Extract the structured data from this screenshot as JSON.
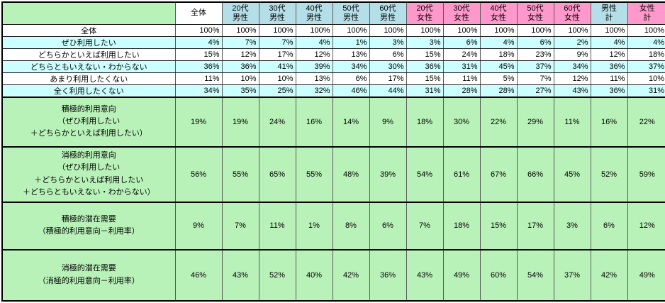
{
  "colors": {
    "section_green": "#B9F2B9",
    "stripe_cyan": "#CCFFFF",
    "male_header_blue": "#B5DFE8",
    "female_header_pink": "#FF99CC",
    "grid_border": "#000000"
  },
  "chart_data": {
    "type": "table",
    "unit": "%",
    "corner_label": "",
    "columns": [
      {
        "label": "全体",
        "group": "total"
      },
      {
        "label": "20代\n男性",
        "group": "male"
      },
      {
        "label": "30代\n男性",
        "group": "male"
      },
      {
        "label": "40代\n男性",
        "group": "male"
      },
      {
        "label": "50代\n男性",
        "group": "male"
      },
      {
        "label": "60代\n男性",
        "group": "male"
      },
      {
        "label": "20代\n女性",
        "group": "female"
      },
      {
        "label": "30代\n女性",
        "group": "female"
      },
      {
        "label": "40代\n女性",
        "group": "female"
      },
      {
        "label": "50代\n女性",
        "group": "female"
      },
      {
        "label": "60代\n女性",
        "group": "female"
      },
      {
        "label": "男性\n計",
        "group": "male"
      },
      {
        "label": "女性\n計",
        "group": "female"
      }
    ],
    "sections": [
      {
        "style": "striped",
        "rows": [
          {
            "label": "全体",
            "values": [
              100,
              100,
              100,
              100,
              100,
              100,
              100,
              100,
              100,
              100,
              100,
              100,
              100
            ]
          },
          {
            "label": "ぜひ利用したい",
            "values": [
              4,
              7,
              7,
              4,
              1,
              3,
              3,
              6,
              4,
              6,
              2,
              4,
              4
            ]
          },
          {
            "label": "どちらかといえば利用したい",
            "values": [
              15,
              12,
              17,
              12,
              13,
              6,
              15,
              24,
              18,
              23,
              9,
              12,
              18
            ]
          },
          {
            "label": "どちらともいえない・わからない",
            "values": [
              36,
              36,
              41,
              39,
              34,
              30,
              36,
              31,
              45,
              37,
              34,
              36,
              37
            ]
          },
          {
            "label": "あまり利用したくない",
            "values": [
              11,
              10,
              10,
              13,
              6,
              17,
              15,
              11,
              5,
              7,
              12,
              11,
              10
            ]
          },
          {
            "label": "全く利用したくない",
            "values": [
              34,
              35,
              25,
              32,
              46,
              44,
              31,
              28,
              28,
              27,
              43,
              36,
              31
            ]
          }
        ]
      },
      {
        "style": "green-blocks",
        "rows": [
          {
            "label": "積極的利用意向\n（ぜひ利用したい\n＋どちらかといえば利用したい）",
            "values": [
              19,
              19,
              24,
              16,
              14,
              9,
              18,
              30,
              22,
              29,
              11,
              16,
              22
            ]
          },
          {
            "label": "消極的利用意向\n（ぜひ利用したい\n＋どちらかといえば利用したい\n＋どちらともいえない・わからない）",
            "values": [
              56,
              55,
              65,
              55,
              48,
              39,
              54,
              61,
              67,
              66,
              45,
              52,
              59
            ]
          },
          {
            "label": "積極的潜在需要\n（積極的利用意向－利用率）",
            "values": [
              9,
              7,
              11,
              1,
              8,
              6,
              7,
              18,
              15,
              17,
              3,
              6,
              12
            ]
          },
          {
            "label": "消極的潜在需要\n（消極的利用意向－利用率）",
            "values": [
              46,
              43,
              52,
              40,
              42,
              36,
              43,
              49,
              60,
              54,
              37,
              42,
              49
            ]
          }
        ]
      }
    ]
  }
}
